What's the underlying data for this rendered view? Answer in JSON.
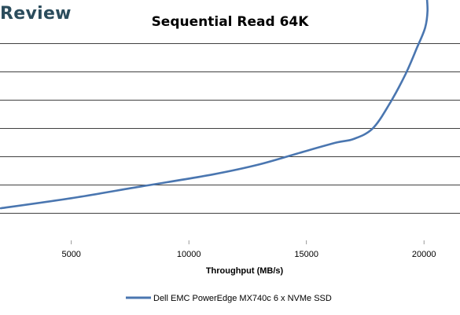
{
  "brand": {
    "text": "Review"
  },
  "chart_data": {
    "type": "line",
    "title": "Sequential Read 64K",
    "xlabel": "Throughput (MB/s)",
    "ylabel": "",
    "x_ticks": [
      5000,
      10000,
      15000,
      20000
    ],
    "xlim": [
      2000,
      21500
    ],
    "y_gridlines": 7,
    "grid": true,
    "legend_position": "bottom",
    "colors": {
      "series": "#4a76b0",
      "grid": "#000000"
    },
    "series": [
      {
        "name": "Dell EMC PowerEdge MX740c 6 x NVMe SSD",
        "x": [
          2000,
          5000,
          8000,
          11000,
          13000,
          15000,
          16300,
          17000,
          17800,
          18500,
          19200,
          19700,
          20050,
          20150,
          20100
        ],
        "y": [
          0.81,
          0.75,
          0.68,
          0.61,
          0.55,
          0.47,
          0.42,
          0.4,
          0.34,
          0.2,
          0.02,
          -0.14,
          -0.26,
          -0.36,
          -0.48
        ]
      }
    ]
  }
}
